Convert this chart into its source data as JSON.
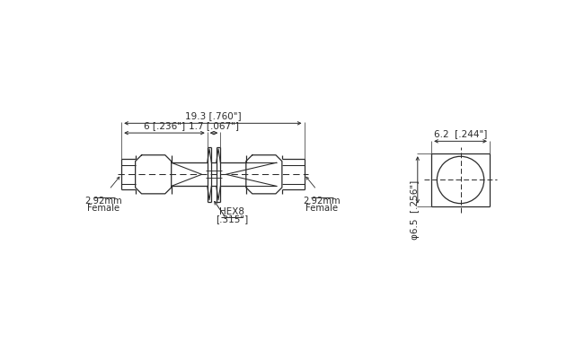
{
  "bg_color": "#ffffff",
  "line_color": "#2a2a2a",
  "dash_color": "#2a2a2a",
  "annotations": {
    "dim_total": "19.3 [.760\"]",
    "dim_left": "6 [.236\"]",
    "dim_middle": "1.7 [.067\"]",
    "hex_label1": "HEX8",
    "hex_label2": "[.315\"]",
    "label_left1": "2.92mm",
    "label_left2": "Female",
    "label_right1": "2.92mm",
    "label_right2": "Female",
    "dim_circle_width": "6.2  [.244\"]",
    "dim_circle_height": "φ6.5  [.256\"]"
  }
}
